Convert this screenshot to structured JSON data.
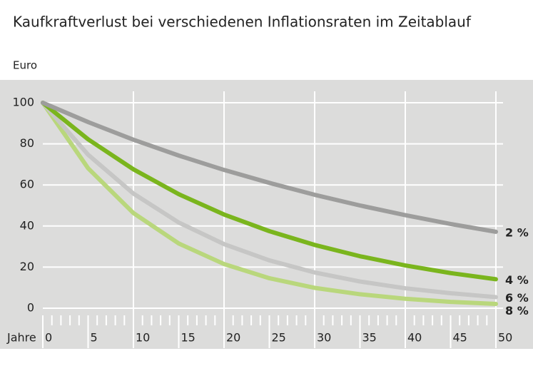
{
  "chart_data": {
    "type": "line",
    "title": "Kaufkraftverlust bei verschiedenen Inflationsraten im Zeitablauf",
    "y_label": "Euro",
    "x_label": "Jahre",
    "x": [
      0,
      5,
      10,
      15,
      20,
      25,
      30,
      35,
      40,
      45,
      50
    ],
    "series": [
      {
        "name": "2 %",
        "color": "#9d9d9c",
        "values": [
          100,
          90.6,
          82.0,
          74.3,
          67.3,
          61.0,
          55.2,
          50.0,
          45.3,
          41.0,
          37.2
        ]
      },
      {
        "name": "4 %",
        "color": "#7ab51d",
        "values": [
          100,
          82.2,
          67.6,
          55.5,
          45.6,
          37.5,
          30.8,
          25.3,
          20.8,
          17.1,
          14.1
        ]
      },
      {
        "name": "6 %",
        "color": "#c6c6c5",
        "values": [
          100,
          74.7,
          55.8,
          41.7,
          31.2,
          23.3,
          17.4,
          13.0,
          9.7,
          7.3,
          5.4
        ]
      },
      {
        "name": "8 %",
        "color": "#b9d77c",
        "values": [
          100,
          68.1,
          46.3,
          31.5,
          21.5,
          14.6,
          9.9,
          6.8,
          4.6,
          3.1,
          2.1
        ]
      }
    ],
    "xlim": [
      0,
      50
    ],
    "xticks": [
      0,
      5,
      10,
      15,
      20,
      25,
      30,
      35,
      40,
      45,
      50
    ],
    "ylim": [
      0,
      100
    ],
    "yticks": [
      0,
      20,
      40,
      60,
      80,
      100
    ],
    "grid": true
  }
}
